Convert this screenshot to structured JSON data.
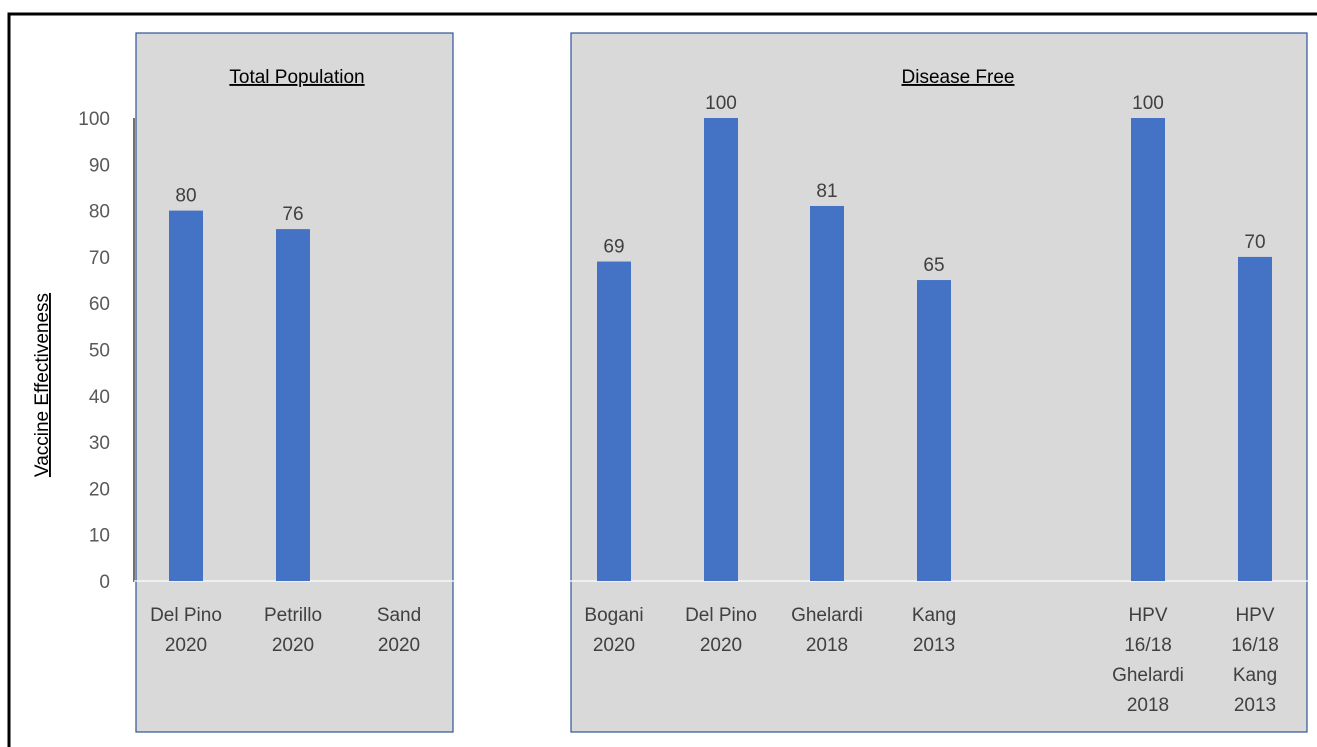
{
  "chart_data": {
    "type": "bar",
    "ylabel": "Vaccine Effectiveness",
    "ylim": [
      0,
      100
    ],
    "yticks": [
      "0",
      "10",
      "20",
      "30",
      "40",
      "50",
      "60",
      "70",
      "80",
      "90",
      "100"
    ],
    "colors": {
      "bar": "#4472c4",
      "panel": "#d9d9d9",
      "panel_border": "#2f5597"
    },
    "panels": [
      {
        "title": "Total Population",
        "bars": [
          {
            "label": [
              "Del Pino",
              "2020"
            ],
            "value": 80,
            "value_label": "80"
          },
          {
            "label": [
              "Petrillo",
              "2020"
            ],
            "value": 76,
            "value_label": "76"
          },
          {
            "label": [
              "Sand",
              "2020"
            ],
            "value": null,
            "value_label": ""
          }
        ]
      },
      {
        "title": "Disease Free",
        "bars": [
          {
            "label": [
              "Bogani",
              "2020"
            ],
            "value": 69,
            "value_label": "69"
          },
          {
            "label": [
              "Del Pino",
              "2020"
            ],
            "value": 100,
            "value_label": "100"
          },
          {
            "label": [
              "Ghelardi",
              "2018"
            ],
            "value": 81,
            "value_label": "81"
          },
          {
            "label": [
              "Kang",
              "2013"
            ],
            "value": 65,
            "value_label": "65"
          },
          {
            "label": [
              "HPV",
              "16/18",
              "Ghelardi",
              "2018"
            ],
            "value": 100,
            "value_label": "100"
          },
          {
            "label": [
              "HPV",
              "16/18",
              "Kang",
              "2013"
            ],
            "value": 70,
            "value_label": "70"
          }
        ]
      }
    ]
  }
}
